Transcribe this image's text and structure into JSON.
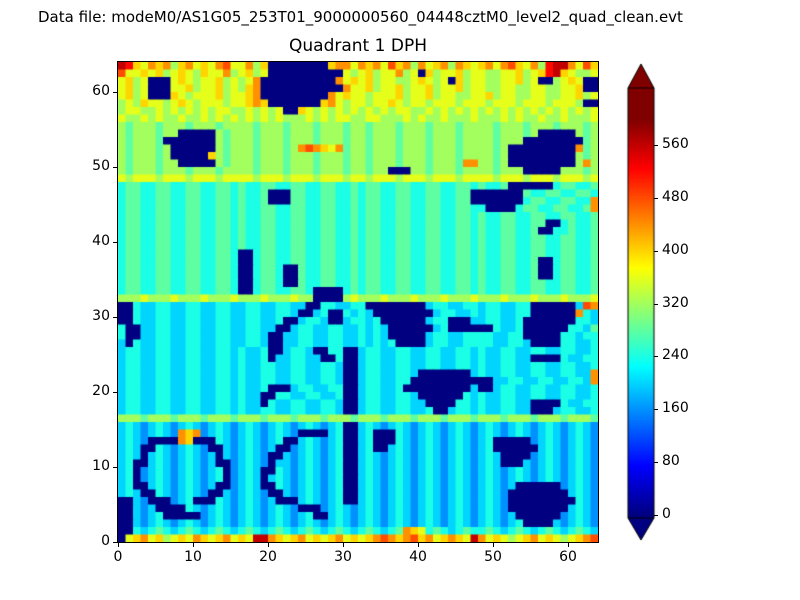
{
  "header": {
    "data_file_label": "Data file: modeM0/AS1G05_253T01_9000000560_04448cztM0_level2_quad_clean.evt"
  },
  "chart_data": {
    "type": "heatmap",
    "title": "Quadrant 1 DPH",
    "grid_size": 64,
    "colormap": "jet",
    "value_step_per_hex_digit": 40,
    "color_scale_max": 600,
    "x_range": [
      0,
      64
    ],
    "y_range": [
      0,
      64
    ],
    "x_ticks": [
      0,
      10,
      20,
      30,
      40,
      50,
      60
    ],
    "y_ticks": [
      0,
      10,
      20,
      30,
      40,
      50,
      60
    ],
    "colorbar": {
      "ticks": [
        0,
        80,
        160,
        240,
        320,
        400,
        480,
        560
      ],
      "extend": "both"
    },
    "rows_top_to_bottom": [
      "eda9bab8ab9a9bc99b8a00000000abb9bab9cab8b9ab8ba9ab9bca9b8deeb9ca",
      "c99a9a89a98a99b89a890000000000989a899b890a899a8998899a89adea9889",
      "9a890009a9899a8989b0000000000b9a9a899889a9890a8998899a890089a900",
      "9a8900099a899a898ab00000000000b99a899a899a899a899889988998899a00",
      "9a89000a98999a899ab000000000b9a998999a899a8998899a89988998899a89",
      "898a9989a98999899aba0000000ab9899899a989989998999899989998999800",
      "899889898989899889898900a989898989898998898989898989898989898989",
      "98898988988989898989898889898998899888989889888988898988 98898889",
      "8788878887888788887888788878887887888788878887888878887888788878",
      "8788878800000878887888788878887887888788878887888878887800000878",
      "8788870000000878887888788878887887888788878887888878880000000078",
      "878887800000087888788878bcba9b7887888788878887888878000000000b78",
      "878887800000a878887888788878887887888788878887888878000000000878",
      "87888788000008788878887888788878878887888788 87bb88780000000008b8",
      "8788878887888788887888788878887887880008878887888878880000088878",
      "9899989998999899998999899989998998999899989998999989998999899989",
      "6776677667766776766776677667766767766776677667767667000000677667",
      "6776677667766776766700077667766767766776677667700000007667766776",
      "6776677667766776766700077667766767766776677667700000 00677667766b",
      "677667766776677676677667766776676776677667766776600006776677667b",
      "6776677667766776766776677667766767766776677667767667766776677667",
      "6776677667766776766776677667766767766776677667767667766770067667",
      "6776677667766776766776677667766767766776677667767667766700667667",
      "6776677667766776766776677667766767766776677667767667766776677667",
      "6776677667766776766776677667766767766776677667767667766776677667",
      "6776677667766776006776677667766767766776677667767667766776677667",
      "6776677667766776006776677667766767766776677667767667766700677667",
      "6776677667766776006776007667766767766776677667767667766700677667",
      "6776677667766776006776007667766767766776677667767667766700677667",
      "6776677667766776006776007667766767766776677667767667766776677667",
      "6776677667766776006776677600006767766776677667767667766776677667",
      "8889888988898889888988898800008988898889888988898889888988898889",
      "0065566556655665566556655006655660000000056655665665566 0000005cb",
      "0065566556655665566556650056006565000000005665565665566000000b65",
      "0065566556655665566556005665005665600000056600055665560000000665",
      "6005566556655665566550056655665565650000005600000065560000006657",
      "6005566556655665566500556655665565650000056655666655660000066566",
      "5065566556655665566500556655665565656000056655666655665000066556",
      "5665566556655665655600566500660056655665566556656556655665566556",
      "5665566556655665655605566550060056655665566556656556655000065566",
      "5665566556655665655665566556650056655665566556656556655665566556",
      "5665566556655665655665566556650056655665000000056556655665 56655b",
      "56655665566556656556655665566500566556600000000000556655665 5665b",
      "5665566556655665655600056655660056655600000000050056655665566556",
      "5665566556655665655006655665560056655665000000656556655665566556",
      "5665566556655665655065566556650056655665500006656556655000065566",
      "5665566556655665655665566556650056655665560056656556655000566556",
      "8887888788878887888788878887888788878887888788878887888788878887",
      "5654565456545654565456545654560056545654565456545654565456545654",
      "56545654bab456545654565400005600560006545654565456 54565456545654",
      "56540000ba0006545654560056545600560006545654565456 00000456545654",
      "5650065456540054565450045654560056005654565456545600000056545654",
      "5650565456545054565400545654560056545654565456545650000456545654",
      "5600565456545004565405545654560056545654565456545650005456545654",
      "5604565456545604565006545654560056545654565456545654565456545654",
      "5604565456545604565056545654560056545654565456545654565456545654",
      "5600565456545004565006545654560056545654565456545654500000045654",
      "5650065456540054565400545654560056545654565456545654000000005654",
      "0054000456000654565450005654560056545654565456545654000000000654",
      "0054500006545654565456540004565456545654565456545654000000005654",
      "0054560000045654565456545600565456545654565456545654500000045654",
      "0054565456545654565456545654565456545654565456545654560000545654",
      "00656765676567656765676567656765676567ba967656766765676567656765",
      "09ab9a89a9ba9ab9a9eeba9ab9a9ab9a9abcbabcab9aba9eb9a989ab9a989abc"
    ]
  }
}
